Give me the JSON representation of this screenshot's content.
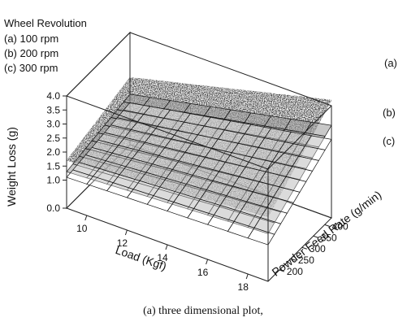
{
  "chart_data": {
    "type": "surface",
    "legend": {
      "title": "Wheel Revolution",
      "items": [
        "(a) 100 rpm",
        "(b) 200 rpm",
        "(c) 300 rpm"
      ],
      "placement": "top-left"
    },
    "x_axis": {
      "label": "Load (Kgf)",
      "ticks": [
        10,
        12,
        14,
        16,
        18
      ],
      "range": [
        9,
        19
      ]
    },
    "y_axis": {
      "label": "Powder Feed Rate (g/min)",
      "ticks": [
        200,
        250,
        300,
        350,
        400
      ],
      "range": [
        150,
        430
      ]
    },
    "z_axis": {
      "label": "Weight Loss (g)",
      "ticks": [
        "0.0",
        "1.0",
        "1.5",
        "2.0",
        "2.5",
        "3.0",
        "3.5",
        "4.0"
      ],
      "range": [
        0,
        4
      ]
    },
    "series": [
      {
        "name": "(a)",
        "corners": {
          "x_min_y_min": 1.7,
          "x_max_y_min": 2.3,
          "x_min_y_max": 2.4,
          "x_max_y_max": 4.2
        }
      },
      {
        "name": "(b)",
        "corners": {
          "x_min_y_min": 1.3,
          "x_max_y_min": 1.7,
          "x_min_y_max": 1.8,
          "x_max_y_max": 3.3
        }
      },
      {
        "name": "(c)",
        "corners": {
          "x_min_y_min": 1.1,
          "x_max_y_min": 1.3,
          "x_min_y_max": 1.5,
          "x_max_y_max": 2.8
        }
      }
    ],
    "grid": true
  },
  "caption": "(a) three dimensional plot,"
}
